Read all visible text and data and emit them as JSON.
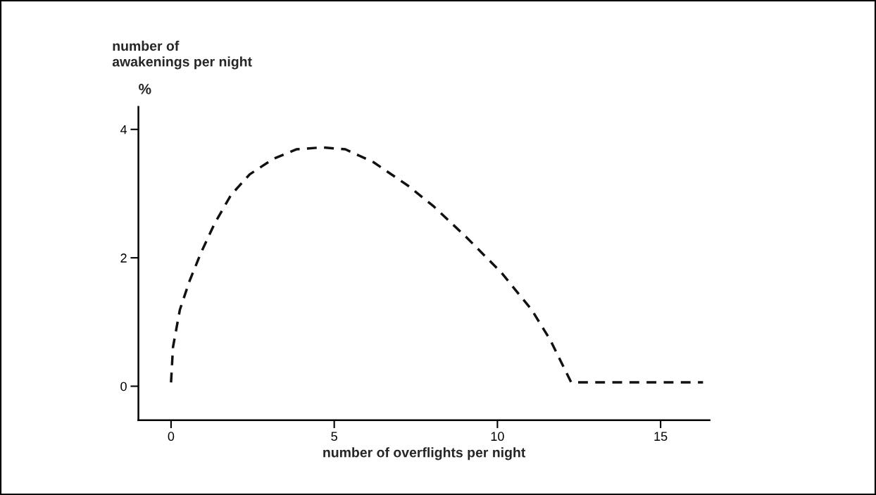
{
  "chart_data": {
    "type": "line",
    "xlabel": "number of overflights per night",
    "ylabel": "number of\nawakenings per night",
    "annotations": [
      "%"
    ],
    "x": [
      0,
      0.06,
      0.27,
      0.56,
      0.91,
      1.34,
      1.84,
      2.41,
      3.13,
      3.84,
      4.63,
      5.34,
      6.2,
      7.27,
      8.05,
      9.05,
      10.12,
      11.05,
      11.62,
      12.26,
      16.3
    ],
    "series": [
      {
        "color": "#111111",
        "values": [
          0.06,
          0.61,
          1.19,
          1.63,
          2.07,
          2.54,
          2.98,
          3.3,
          3.54,
          3.69,
          3.72,
          3.69,
          3.49,
          3.12,
          2.8,
          2.32,
          1.77,
          1.19,
          0.72,
          0.06,
          0.06
        ]
      }
    ],
    "line_style": "dashed",
    "marker": "none",
    "xlim": [
      -1,
      16.5
    ],
    "ylim": [
      -0.53,
      4.35
    ],
    "xticks": [
      0,
      5,
      10,
      15
    ],
    "yticks": [
      0,
      2,
      4
    ],
    "grid": false,
    "legend": false
  }
}
